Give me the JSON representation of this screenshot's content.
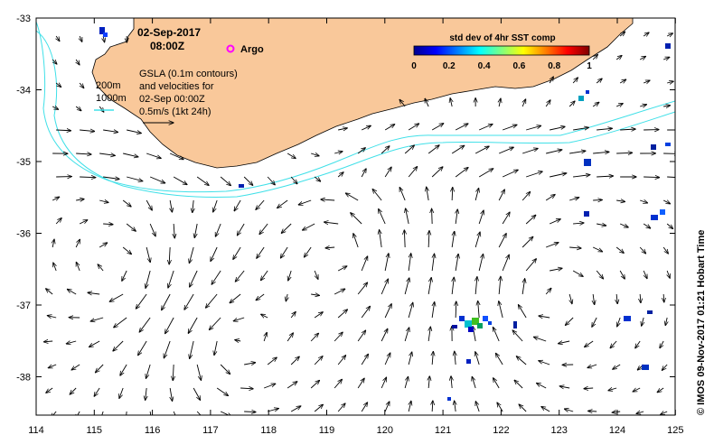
{
  "map": {
    "date": "02-Sep-2017",
    "time": "08:00Z",
    "argo_label": "Argo",
    "gsla_line1": "GSLA (0.1m contours)",
    "gsla_line2": "and velocities for",
    "gsla_line3": "02-Sep 00:00Z",
    "gsla_line4": "0.5m/s (1kt 24h)",
    "isobath_200": "200m",
    "isobath_1000": "1000m",
    "credit": "© IMOS 09-Nov-2017 01:21 Hobart Time",
    "land_color": "#f9c89a",
    "isobath_color": "#40e0e8"
  },
  "colorbar": {
    "title": "std dev of 4hr SST comp",
    "ticks": [
      "0",
      "0.2",
      "0.4",
      "0.6",
      "0.8",
      "1"
    ]
  },
  "axes": {
    "lon_ticks": [
      "114",
      "115",
      "116",
      "117",
      "118",
      "119",
      "120",
      "121",
      "122",
      "123",
      "124",
      "125"
    ],
    "lat_ticks": [
      "-33",
      "-34",
      "-35",
      "-36",
      "-37",
      "-38"
    ]
  }
}
